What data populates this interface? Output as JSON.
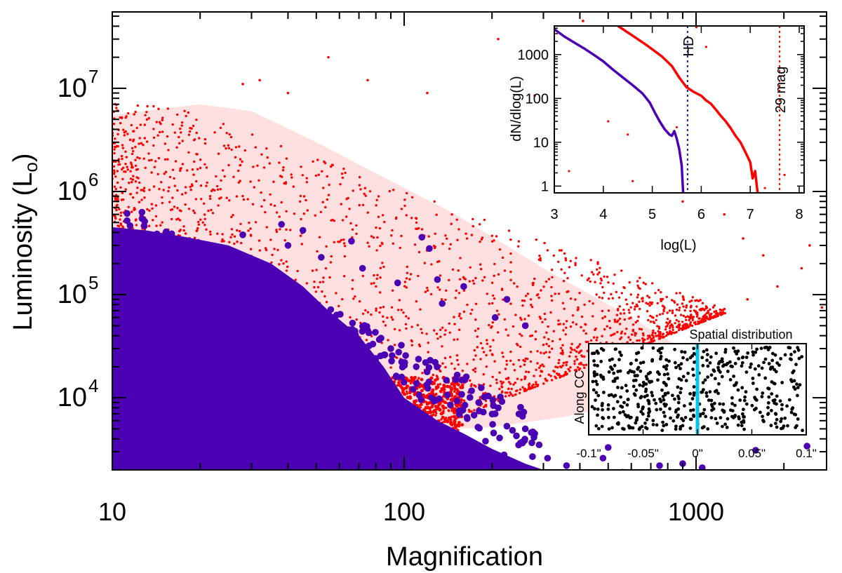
{
  "chart_data": [
    {
      "id": "main",
      "type": "scatter",
      "xlabel": "Magnification",
      "ylabel_main": "Luminosity (L",
      "ylabel_sub": "o",
      "ylabel_close": ")",
      "xscale": "log",
      "yscale": "log",
      "xlim": [
        10,
        2800
      ],
      "ylim": [
        2000,
        55000000
      ],
      "xticks": [
        {
          "value": 10,
          "label": "10"
        },
        {
          "value": 100,
          "label": "100"
        },
        {
          "value": 1000,
          "label": "1000"
        }
      ],
      "yticks": [
        {
          "value": 10000,
          "base": "10",
          "exp": "4"
        },
        {
          "value": 100000,
          "base": "10",
          "exp": "5"
        },
        {
          "value": 1000000,
          "base": "10",
          "exp": "6"
        },
        {
          "value": 10000000,
          "base": "10",
          "exp": "7"
        }
      ],
      "colors": {
        "all_sources": "#ff0000",
        "detected_sources": "#4b00b4"
      },
      "series": [
        {
          "key": "red_dense_envelope",
          "color": "#ff0000",
          "points": [
            [
              10,
              5500000
            ],
            [
              14,
              6200000
            ],
            [
              20,
              7000000
            ],
            [
              30,
              6000000
            ],
            [
              50,
              3000000
            ],
            [
              80,
              1500000
            ],
            [
              150,
              600000
            ],
            [
              300,
              180000
            ],
            [
              600,
              60000
            ],
            [
              1000,
              25000
            ],
            [
              900,
              12000
            ],
            [
              600,
              9000
            ],
            [
              350,
              6500
            ],
            [
              200,
              5200
            ],
            [
              120,
              4800
            ],
            [
              90,
              4600
            ],
            [
              60,
              5000
            ],
            [
              40,
              6500
            ],
            [
              20,
              15000
            ],
            [
              10,
              40000
            ]
          ]
        },
        {
          "key": "red_sparse_outliers",
          "color": "#ff0000",
          "points": [
            [
              32,
              12000000
            ],
            [
              28,
              11000000
            ],
            [
              40,
              9000000
            ],
            [
              55,
              20000000
            ],
            [
              75,
              12000000
            ],
            [
              120,
              9000000
            ],
            [
              210,
              30000000
            ],
            [
              410,
              45000000
            ],
            [
              360,
              17000000
            ],
            [
              280,
              8500000
            ],
            [
              580,
              1500000
            ],
            [
              900,
              800000
            ],
            [
              1250,
              600000
            ],
            [
              1450,
              350000
            ],
            [
              1700,
              240000
            ],
            [
              2300,
              180000
            ],
            [
              1900,
              120000
            ],
            [
              2450,
              300000
            ],
            [
              2700,
              75000
            ],
            [
              1500,
              90000
            ]
          ]
        },
        {
          "key": "purple_detected_sparse",
          "color": "#4b00b4",
          "points": [
            [
              28,
              380000
            ],
            [
              38,
              480000
            ],
            [
              40,
              300000
            ],
            [
              45,
              420000
            ],
            [
              52,
              230000
            ],
            [
              66,
              330000
            ],
            [
              72,
              180000
            ],
            [
              95,
              130000
            ],
            [
              115,
              360000
            ],
            [
              122,
              280000
            ],
            [
              130,
              140000
            ],
            [
              135,
              82000
            ],
            [
              160,
              120000
            ],
            [
              205,
              60000
            ],
            [
              225,
              90000
            ],
            [
              260,
              50000
            ],
            [
              75,
              45000
            ],
            [
              90,
              30000
            ],
            [
              110,
              20000
            ],
            [
              150,
              15000
            ],
            [
              180,
              9000
            ],
            [
              205,
              7000
            ],
            [
              210,
              8000
            ],
            [
              260,
              5000
            ],
            [
              290,
              3500
            ],
            [
              310,
              2600
            ],
            [
              360,
              2200
            ],
            [
              480,
              2600
            ],
            [
              500,
              3300
            ],
            [
              560,
              1900
            ],
            [
              750,
              2200
            ],
            [
              900,
              2300
            ],
            [
              1050,
              2100
            ],
            [
              2400,
              3400
            ],
            [
              1600,
              3100
            ],
            [
              150,
              3000
            ],
            [
              190,
              3800
            ],
            [
              220,
              2800
            ],
            [
              240,
              2200
            ],
            [
              105,
              2600
            ]
          ]
        }
      ]
    },
    {
      "id": "inset_luminosity_function",
      "type": "line",
      "xlabel": "log(L)",
      "ylabel": "dN/dlog(L)",
      "xlim": [
        3,
        8.1
      ],
      "ylim": [
        0.7,
        4500
      ],
      "yscale": "log",
      "xticks": [
        3,
        4,
        5,
        6,
        7,
        8
      ],
      "yticks": [
        {
          "value": 1,
          "label": "1"
        },
        {
          "value": 10,
          "label": "10"
        },
        {
          "value": 100,
          "label": "100"
        },
        {
          "value": 1000,
          "label": "1000"
        }
      ],
      "series": [
        {
          "key": "all",
          "color": "#ff0000",
          "points": [
            [
              4.3,
              4500
            ],
            [
              4.6,
              2700
            ],
            [
              4.9,
              1600
            ],
            [
              5.2,
              900
            ],
            [
              5.4,
              550
            ],
            [
              5.55,
              300
            ],
            [
              5.7,
              180
            ],
            [
              5.85,
              140
            ],
            [
              6.0,
              115
            ],
            [
              6.1,
              90
            ],
            [
              6.2,
              75
            ],
            [
              6.3,
              55
            ],
            [
              6.4,
              40
            ],
            [
              6.5,
              30
            ],
            [
              6.6,
              21
            ],
            [
              6.7,
              14
            ],
            [
              6.8,
              10
            ],
            [
              6.9,
              6
            ],
            [
              7.0,
              3.5
            ],
            [
              7.05,
              1.5
            ],
            [
              7.1,
              2.2
            ],
            [
              7.15,
              0.7
            ]
          ]
        },
        {
          "key": "detected",
          "color": "#4b00b4",
          "points": [
            [
              3.0,
              3800
            ],
            [
              3.2,
              2600
            ],
            [
              3.4,
              1900
            ],
            [
              3.6,
              1400
            ],
            [
              3.8,
              1000
            ],
            [
              4.0,
              700
            ],
            [
              4.2,
              450
            ],
            [
              4.4,
              300
            ],
            [
              4.6,
              200
            ],
            [
              4.8,
              130
            ],
            [
              4.95,
              80
            ],
            [
              5.05,
              48
            ],
            [
              5.15,
              30
            ],
            [
              5.25,
              20
            ],
            [
              5.35,
              15
            ],
            [
              5.4,
              14
            ],
            [
              5.45,
              18
            ],
            [
              5.5,
              12
            ],
            [
              5.55,
              7
            ],
            [
              5.6,
              3
            ],
            [
              5.63,
              0.7
            ]
          ]
        }
      ],
      "reference_lines": [
        {
          "x": 5.72,
          "label": "HD",
          "color": "#1a1aa0"
        },
        {
          "x": 7.6,
          "label": "29 mag",
          "color": "#ff0000"
        }
      ]
    },
    {
      "id": "inset_spatial",
      "type": "scatter",
      "title": "Spatial distribution",
      "ylabel": "Along CC",
      "xlim": [
        -0.1,
        0.1
      ],
      "xticks": [
        {
          "value": -0.1,
          "label": "-0.1\""
        },
        {
          "value": -0.05,
          "label": "-0.05\""
        },
        {
          "value": 0,
          "label": "0\""
        },
        {
          "value": 0.05,
          "label": "0.05\""
        },
        {
          "value": 0.1,
          "label": "0.1\""
        }
      ],
      "critical_curve_color": "#00c8e6",
      "points_uniform": true
    }
  ]
}
